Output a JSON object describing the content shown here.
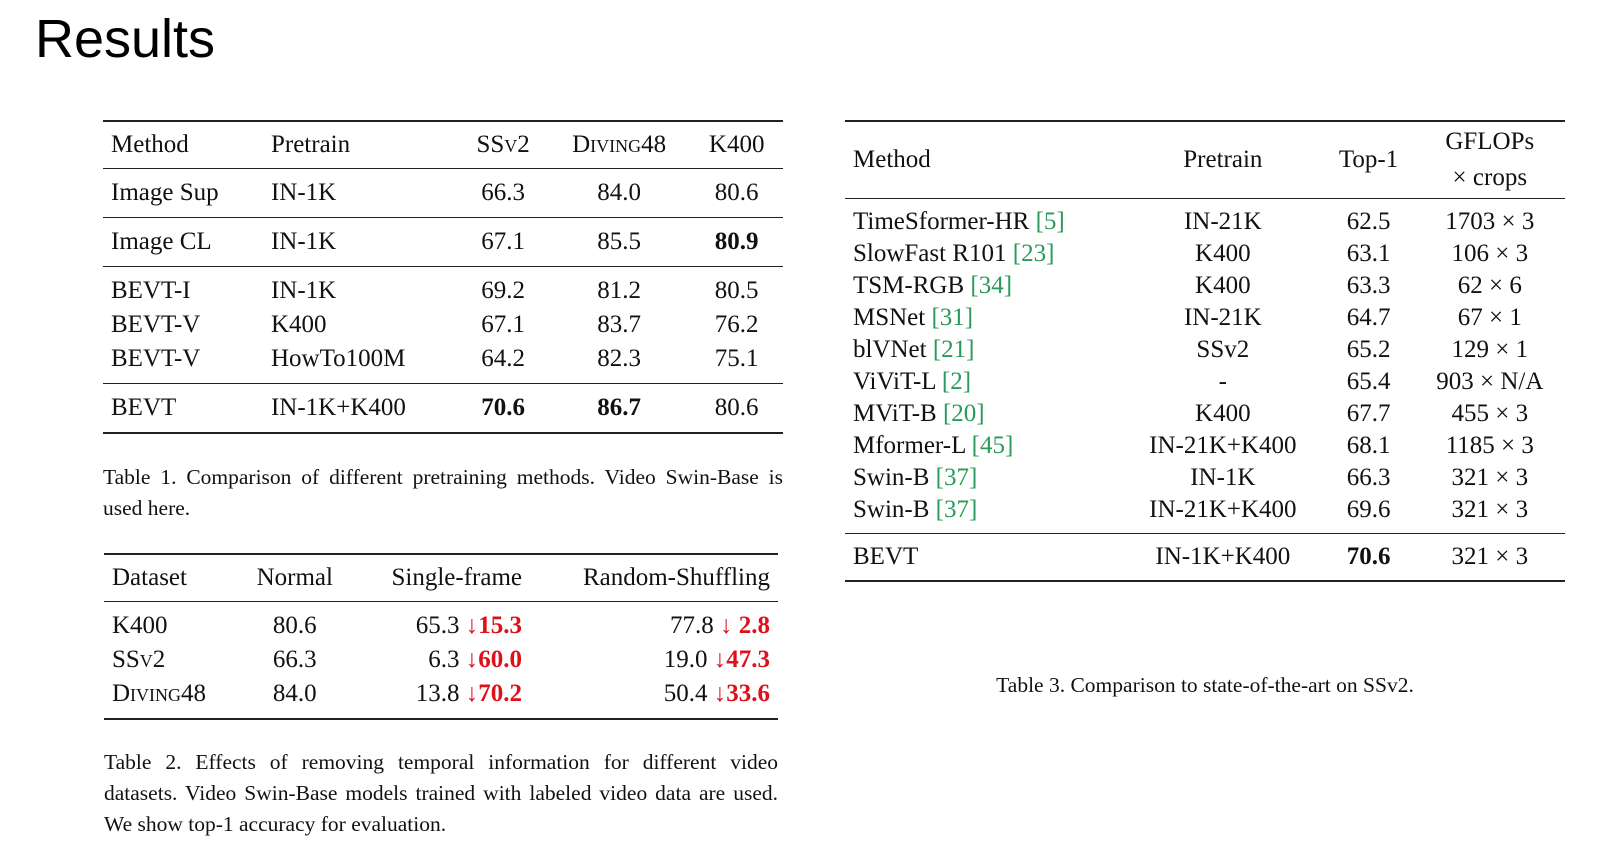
{
  "title": "Results",
  "table1": {
    "header": [
      "Method",
      "Pretrain",
      "SSv2",
      "Diving48",
      "K400"
    ],
    "groups": [
      [
        [
          "Image Sup",
          "IN-1K",
          "66.3",
          "84.0",
          "80.6"
        ]
      ],
      [
        [
          "Image CL",
          "IN-1K",
          "67.1",
          "85.5",
          "80.9"
        ]
      ],
      [
        [
          "BEVT-I",
          "IN-1K",
          "69.2",
          "81.2",
          "80.5"
        ],
        [
          "BEVT-V",
          "K400",
          "67.1",
          "83.7",
          "76.2"
        ],
        [
          "BEVT-V",
          "HowTo100M",
          "64.2",
          "82.3",
          "75.1"
        ]
      ],
      [
        [
          "BEVT",
          "IN-1K+K400",
          "70.6",
          "86.7",
          "80.6"
        ]
      ]
    ],
    "caption": "Table 1. Comparison of different pretraining methods. Video Swin-Base is used here."
  },
  "table2": {
    "header": [
      "Dataset",
      "Normal",
      "Single-frame",
      "Random-Shuffling"
    ],
    "rows": [
      [
        "K400",
        "80.6",
        [
          "65.3",
          "↓15.3"
        ],
        [
          "77.8",
          "↓ 2.8"
        ]
      ],
      [
        "SSv2",
        "66.3",
        [
          "6.3",
          "↓60.0"
        ],
        [
          "19.0",
          "↓47.3"
        ]
      ],
      [
        "Diving48",
        "84.0",
        [
          "13.8",
          "↓70.2"
        ],
        [
          "50.4",
          "↓33.6"
        ]
      ]
    ],
    "caption": "Table 2. Effects of removing temporal information for different video datasets. Video Swin-Base models trained with labeled video data are used. We show top-1 accuracy for evaluation."
  },
  "table3": {
    "header": [
      "Method",
      "Pretrain",
      "Top-1",
      [
        "GFLOPs",
        "× crops"
      ]
    ],
    "groups": [
      [
        [
          [
            "TimeSformer-HR",
            "[5]"
          ],
          "IN-21K",
          "62.5",
          "1703 × 3"
        ],
        [
          [
            "SlowFast R101",
            "[23]"
          ],
          "K400",
          "63.1",
          "106 × 3"
        ],
        [
          [
            "TSM-RGB",
            "[34]"
          ],
          "K400",
          "63.3",
          "62 × 6"
        ],
        [
          [
            "MSNet",
            "[31]"
          ],
          "IN-21K",
          "64.7",
          "67 × 1"
        ],
        [
          [
            "blVNet",
            "[21]"
          ],
          "SSv2",
          "65.2",
          "129 × 1"
        ],
        [
          [
            "ViViT-L",
            "[2]"
          ],
          "-",
          "65.4",
          "903 × N/A"
        ],
        [
          [
            "MViT-B",
            "[20]"
          ],
          "K400",
          "67.7",
          "455 × 3"
        ],
        [
          [
            "Mformer-L",
            "[45]"
          ],
          "IN-21K+K400",
          "68.1",
          "1185 × 3"
        ],
        [
          [
            "Swin-B",
            "[37]"
          ],
          "IN-1K",
          "66.3",
          "321 × 3"
        ],
        [
          [
            "Swin-B",
            "[37]"
          ],
          "IN-21K+K400",
          "69.6",
          "321 × 3"
        ]
      ],
      [
        [
          "BEVT",
          "IN-1K+K400",
          "70.6",
          "321 × 3"
        ]
      ]
    ],
    "caption": "Table 3. Comparison to state-of-the-art on SSv2."
  }
}
